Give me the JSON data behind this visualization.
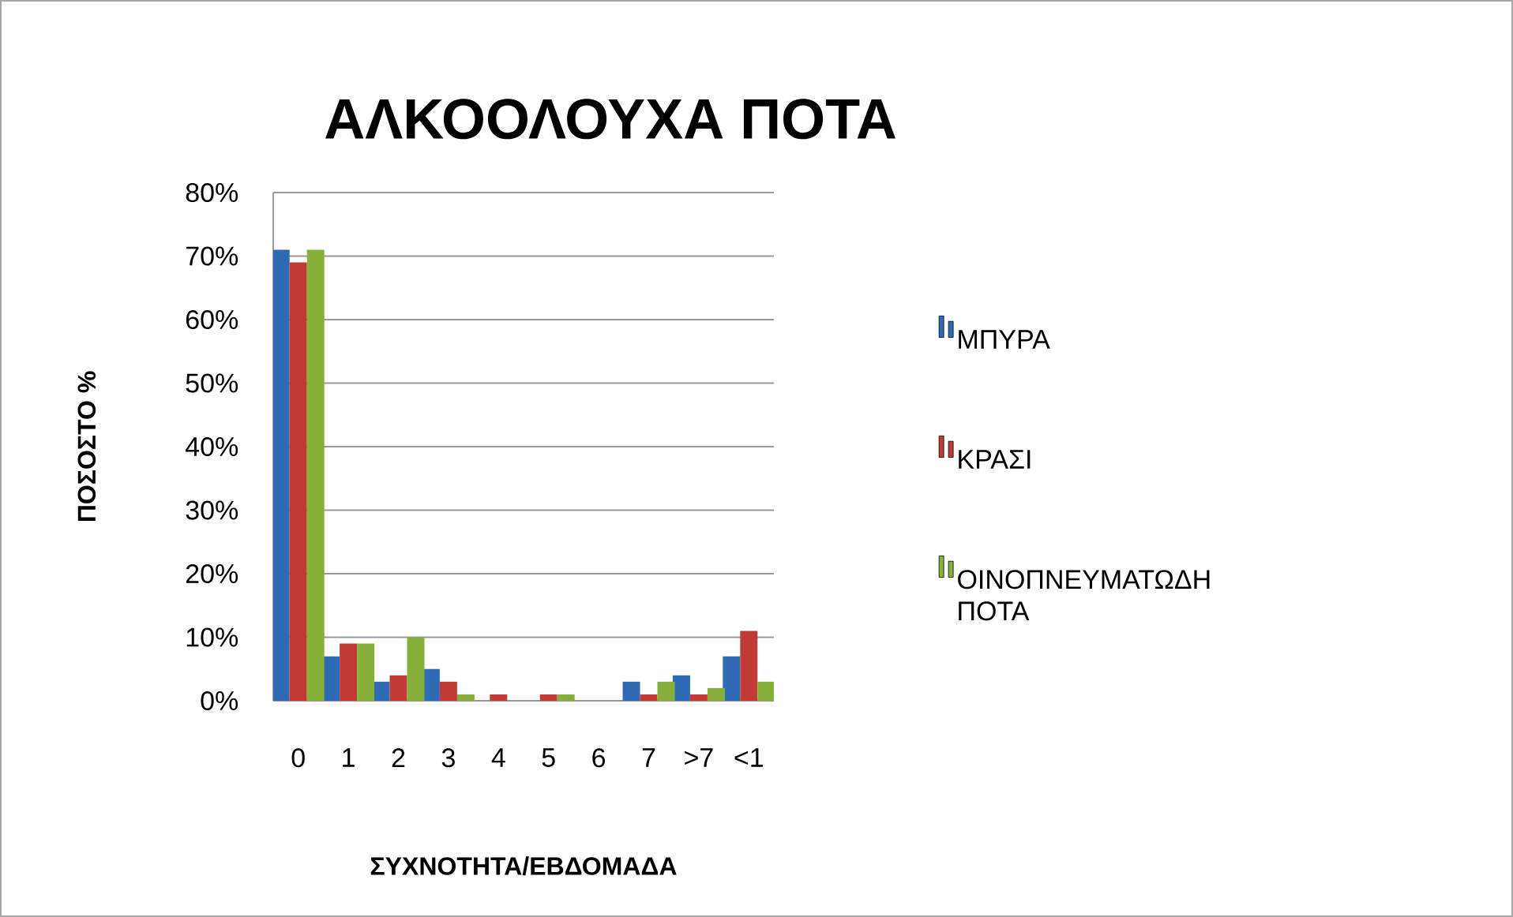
{
  "chart_data": {
    "type": "bar",
    "title": "ΑΛΚΟΟΛΟΥΧΑ ΠΟΤΑ",
    "xlabel": "ΣΥΧΝΟΤΗΤΑ/ΕΒΔΟΜΑΔΑ",
    "ylabel": "ΠΟΣΟΣΤΟ %",
    "categories": [
      "0",
      "1",
      "2",
      "3",
      "4",
      "5",
      "6",
      "7",
      ">7",
      "<1"
    ],
    "series": [
      {
        "name": "ΜΠΥΡΑ",
        "color": "#2e6bb4",
        "values": [
          71,
          7,
          3,
          5,
          0,
          0,
          0,
          3,
          4,
          7
        ]
      },
      {
        "name": "ΚΡΑΣΙ",
        "color": "#c23a36",
        "values": [
          69,
          9,
          4,
          3,
          1,
          1,
          0,
          1,
          1,
          11
        ]
      },
      {
        "name": "ΟΙΝΟΠΝΕΥΜΑΤΩΔΗ ΠΟΤΑ",
        "color": "#86b03a",
        "values": [
          71,
          9,
          10,
          1,
          0,
          1,
          0,
          3,
          2,
          3
        ]
      }
    ],
    "ylim": [
      0,
      80
    ],
    "yticks": [
      {
        "value": 0,
        "label": "0%"
      },
      {
        "value": 10,
        "label": "10%"
      },
      {
        "value": 20,
        "label": "20%"
      },
      {
        "value": 30,
        "label": "30%"
      },
      {
        "value": 40,
        "label": "40%"
      },
      {
        "value": 50,
        "label": "50%"
      },
      {
        "value": 60,
        "label": "60%"
      },
      {
        "value": 70,
        "label": "70%"
      },
      {
        "value": 80,
        "label": "80%"
      }
    ],
    "grid": "y",
    "legend": "right"
  }
}
